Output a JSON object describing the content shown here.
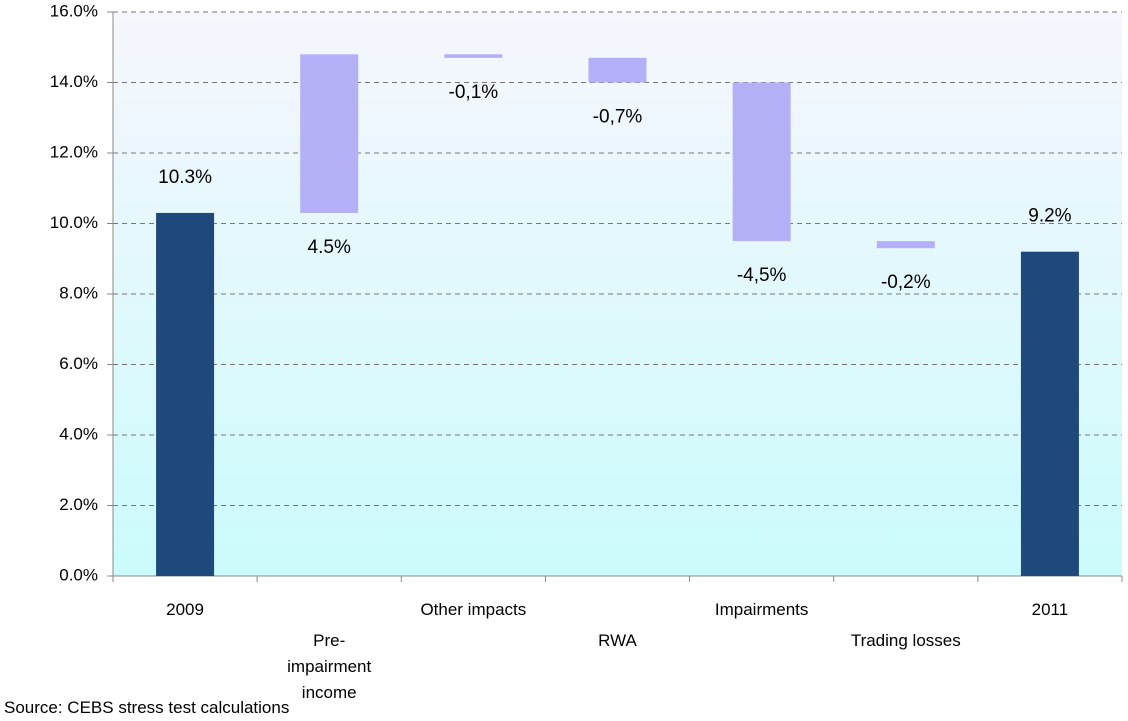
{
  "chart_data": {
    "type": "waterfall",
    "categories": [
      "2009",
      "Pre-impairment income",
      "Other impacts",
      "RWA",
      "Impairments",
      "Trading losses",
      "2011"
    ],
    "values": [
      10.3,
      4.5,
      -0.1,
      -0.7,
      -4.5,
      -0.2,
      9.2
    ],
    "value_labels": [
      "10.3%",
      "4.5%",
      "-0,1%",
      "-0,7%",
      "-4,5%",
      "-0,2%",
      "9.2%"
    ],
    "colors": [
      "#1f497d",
      "#b4b0f8",
      "#b4b0f8",
      "#b4b0f8",
      "#b4b0f8",
      "#b4b0f8",
      "#1f497d"
    ],
    "ylim": [
      0,
      16
    ],
    "yticks": [
      {
        "value": 0,
        "label": "0.0%"
      },
      {
        "value": 2,
        "label": "2.0%"
      },
      {
        "value": 4,
        "label": "4.0%"
      },
      {
        "value": 6,
        "label": "6.0%"
      },
      {
        "value": 8,
        "label": "8.0%"
      },
      {
        "value": 10,
        "label": "10.0%"
      },
      {
        "value": 12,
        "label": "12.0%"
      },
      {
        "value": 14,
        "label": "14.0%"
      },
      {
        "value": 16,
        "label": "16.0%"
      }
    ],
    "grid": true,
    "source": "Source: CEBS stress test calculations"
  }
}
